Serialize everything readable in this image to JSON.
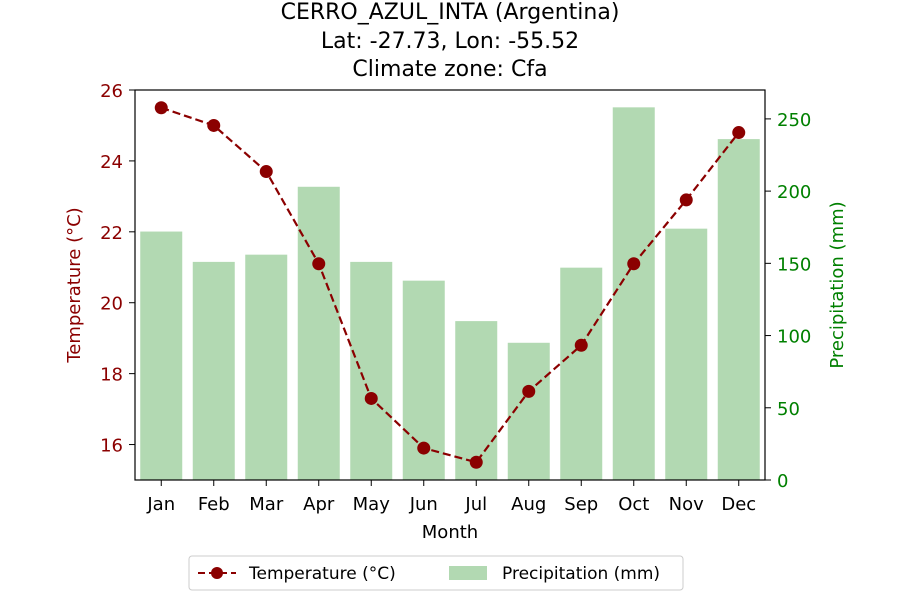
{
  "chart_data": {
    "type": "bar+line",
    "title_lines": [
      "CERRO_AZUL_INTA (Argentina)",
      "Lat: -27.73, Lon: -55.52",
      "Climate zone: Cfa"
    ],
    "xlabel": "Month",
    "ylabel_left": "Temperature (°C)",
    "ylabel_right": "Precipitation (mm)",
    "categories": [
      "Jan",
      "Feb",
      "Mar",
      "Apr",
      "May",
      "Jun",
      "Jul",
      "Aug",
      "Sep",
      "Oct",
      "Nov",
      "Dec"
    ],
    "temperature": [
      25.5,
      25.0,
      23.7,
      21.1,
      17.3,
      15.9,
      15.5,
      17.5,
      18.8,
      21.1,
      22.9,
      24.8
    ],
    "precipitation": [
      172,
      151,
      156,
      203,
      151,
      138,
      110,
      95,
      147,
      258,
      174,
      236
    ],
    "ylim_left": [
      15,
      26
    ],
    "yticks_left": [
      16,
      18,
      20,
      22,
      24,
      26
    ],
    "ylim_right": [
      0,
      270
    ],
    "yticks_right": [
      0,
      50,
      100,
      150,
      200,
      250
    ],
    "legend": {
      "placement": "bottom-center",
      "entries": [
        "Temperature (°C)",
        "Precipitation (mm)"
      ]
    },
    "colors": {
      "temperature_line": "#8b0000",
      "temperature_marker": "#8b0000",
      "precip_bar": "#b2d9b2",
      "left_axis_text": "#8b0000",
      "right_axis_text": "#008000"
    },
    "grid": false
  }
}
